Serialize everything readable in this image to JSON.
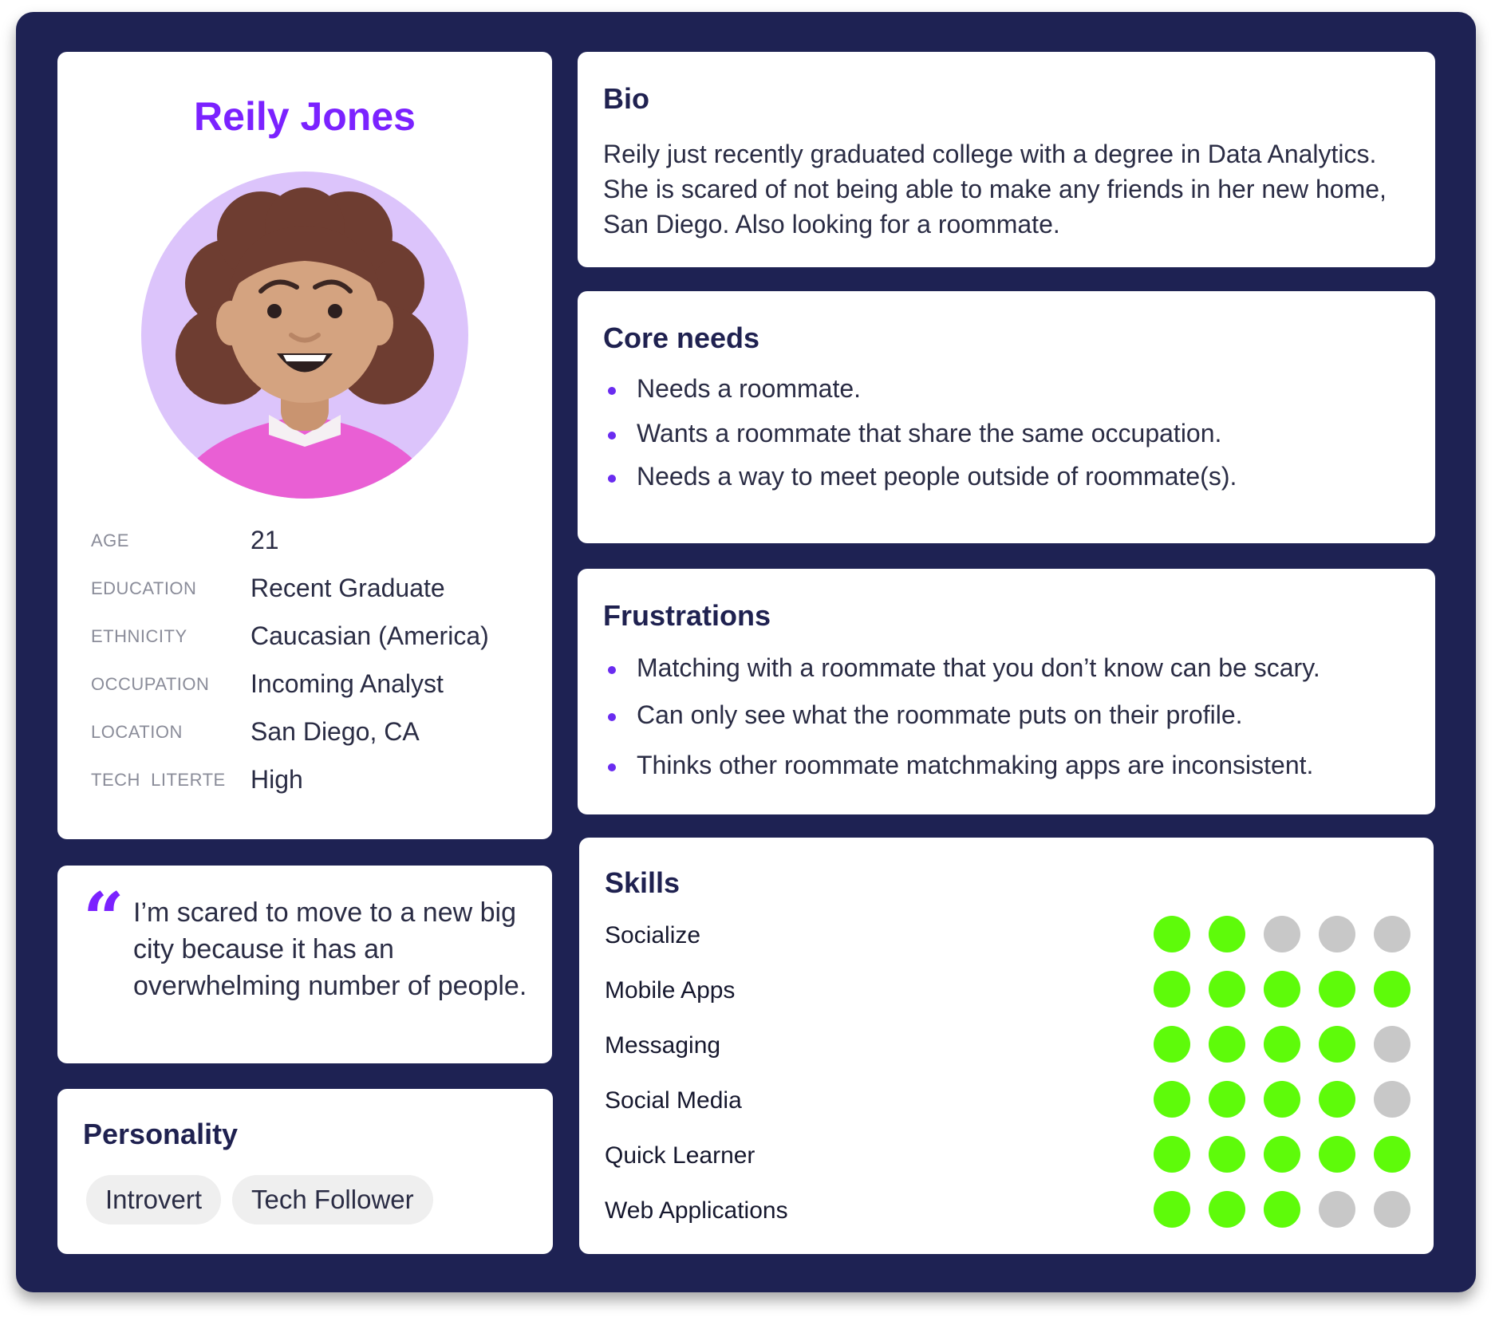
{
  "profile": {
    "name": "Reily Jones",
    "facts": [
      {
        "label": "AGE",
        "value": "21"
      },
      {
        "label": "EDUCATION",
        "value": "Recent Graduate"
      },
      {
        "label": "ETHNICITY",
        "value": "Caucasian (America)"
      },
      {
        "label": "OCCUPATION",
        "value": "Incoming Analyst"
      },
      {
        "label": "LOCATION",
        "value": "San Diego, CA"
      },
      {
        "label": "TECH  LITERTE",
        "value": "High"
      }
    ]
  },
  "quote": {
    "mark": "“",
    "text": "I’m scared to move to a new big city because it has an overwhelming number of people."
  },
  "personality": {
    "title": "Personality",
    "tags": [
      "Introvert",
      "Tech Follower"
    ]
  },
  "bio": {
    "title": "Bio",
    "text": "Reily just recently graduated college with a degree in Data Analytics. She is scared of not being able to make any friends in her new home, San Diego. Also looking for a roommate."
  },
  "core_needs": {
    "title": "Core needs",
    "items": [
      "Needs a roommate.",
      "Wants a roommate that share the same occupation.",
      "Needs a way to meet people outside of roommate(s)."
    ]
  },
  "frustrations": {
    "title": "Frustrations",
    "items": [
      "Matching with a roommate that you don’t know can be scary.",
      "Can only see what the roommate puts on their profile.",
      "Thinks other roommate matchmaking apps are inconsistent."
    ]
  },
  "skills": {
    "title": "Skills",
    "max": 5,
    "items": [
      {
        "name": "Socialize",
        "level": 2
      },
      {
        "name": "Mobile Apps",
        "level": 5
      },
      {
        "name": "Messaging",
        "level": 4
      },
      {
        "name": "Social Media",
        "level": 4
      },
      {
        "name": "Quick Learner",
        "level": 5
      },
      {
        "name": "Web Applications",
        "level": 3
      }
    ]
  },
  "colors": {
    "frame": "#1e2253",
    "accent": "#7b22ff",
    "skill_on": "#5efb0a",
    "skill_off": "#c8c8c8"
  }
}
